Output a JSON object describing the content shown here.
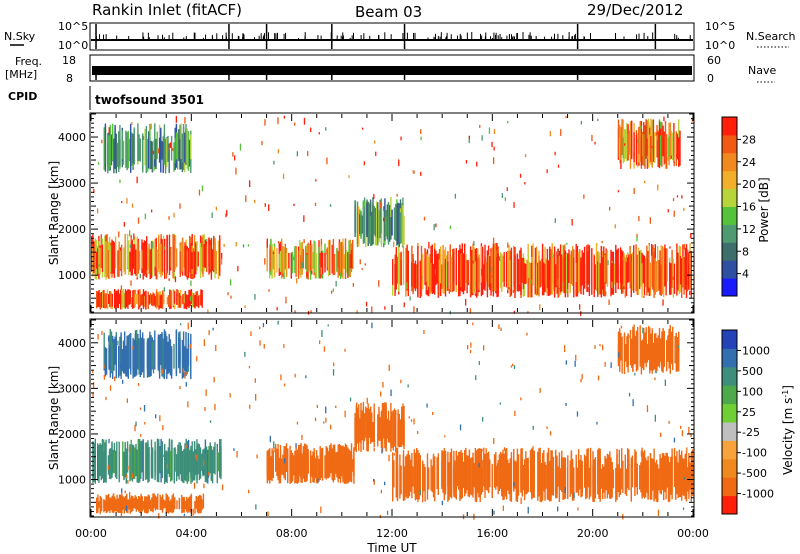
{
  "header": {
    "station": "Rankin Inlet (fitACF)",
    "beam": "Beam 03",
    "date": "29/Dec/2012"
  },
  "strip_panels": {
    "nsky_label": "N.Sky",
    "nsky_ticks": [
      "10^5",
      "10^0"
    ],
    "nsearch_label": "N.Search",
    "nsearch_ticks": [
      "10^5",
      "10^0"
    ],
    "freq_label_line1": "Freq.",
    "freq_label_line2": "[MHz]",
    "freq_ticks": [
      "18",
      "8"
    ],
    "nave_label": "Nave",
    "nave_ticks": [
      "60",
      "0"
    ],
    "cpid_label": "CPID",
    "cpid_value": "twofsound 3501"
  },
  "colors": {
    "power_scale": [
      "#1a1aff",
      "#2f4fa0",
      "#3c6f6c",
      "#4f9a70",
      "#55c23a",
      "#b7d43a",
      "#f2b02a",
      "#f08a1e",
      "#f05a14",
      "#ff1f0a"
    ],
    "velocity_scale": [
      "#2442b8",
      "#336fae",
      "#3d8f7b",
      "#4ea94a",
      "#6fcf34",
      "#bfbfbf",
      "#f7a23a",
      "#f08a1e",
      "#f06a14",
      "#ff1f0a"
    ]
  },
  "chart_data": [
    {
      "type": "heatmap",
      "name": "Power",
      "ylabel": "Slant Range [km]",
      "yticks": [
        "1000",
        "2000",
        "3000",
        "4000"
      ],
      "ylim": [
        200,
        4500
      ],
      "xlabel": "Time UT",
      "xticks": [
        "00:00",
        "04:00",
        "08:00",
        "12:00",
        "16:00",
        "20:00",
        "00:00"
      ],
      "colorbar": {
        "label": "Power [dB]",
        "ticks": [
          "4",
          "8",
          "12",
          "16",
          "20",
          "24",
          "28"
        ],
        "range": [
          0,
          30
        ]
      },
      "regions": [
        {
          "t0": 0.0,
          "t1": 5.2,
          "r0": 900,
          "r1": 1900,
          "value": 26
        },
        {
          "t0": 0.2,
          "t1": 4.5,
          "r0": 250,
          "r1": 700,
          "value": 28
        },
        {
          "t0": 7.0,
          "t1": 10.5,
          "r0": 900,
          "r1": 1800,
          "value": 22
        },
        {
          "t0": 12.0,
          "t1": 24.0,
          "r0": 500,
          "r1": 1700,
          "value": 28
        },
        {
          "t0": 10.5,
          "t1": 12.5,
          "r0": 1600,
          "r1": 2700,
          "value": 12
        },
        {
          "t0": 0.5,
          "t1": 4.0,
          "r0": 3200,
          "r1": 4300,
          "value": 10
        },
        {
          "t0": 21.0,
          "t1": 23.5,
          "r0": 3300,
          "r1": 4400,
          "value": 24
        }
      ]
    },
    {
      "type": "heatmap",
      "name": "Velocity",
      "ylabel": "Slant Range [km]",
      "yticks": [
        "1000",
        "2000",
        "3000",
        "4000"
      ],
      "ylim": [
        200,
        4500
      ],
      "xlabel": "Time UT",
      "xticks": [
        "00:00",
        "04:00",
        "08:00",
        "12:00",
        "16:00",
        "20:00",
        "00:00"
      ],
      "colorbar": {
        "label_main": "Velocity [m s",
        "label_sup": "-1",
        "label_end": "]",
        "ticks": [
          "1000",
          "500",
          "100",
          "25",
          "-25",
          "-100",
          "-500",
          "-1000"
        ]
      },
      "regions": [
        {
          "t0": 0.0,
          "t1": 5.2,
          "r0": 900,
          "r1": 1900,
          "value": 400
        },
        {
          "t0": 0.2,
          "t1": 4.5,
          "r0": 250,
          "r1": 700,
          "value": -200
        },
        {
          "t0": 7.0,
          "t1": 10.5,
          "r0": 900,
          "r1": 1800,
          "value": -200
        },
        {
          "t0": 12.0,
          "t1": 24.0,
          "r0": 500,
          "r1": 1700,
          "value": -150
        },
        {
          "t0": 10.5,
          "t1": 12.5,
          "r0": 1600,
          "r1": 2700,
          "value": -300
        },
        {
          "t0": 0.5,
          "t1": 4.0,
          "r0": 3200,
          "r1": 4300,
          "value": 600
        },
        {
          "t0": 21.0,
          "t1": 23.5,
          "r0": 3300,
          "r1": 4400,
          "value": -300
        }
      ]
    }
  ]
}
